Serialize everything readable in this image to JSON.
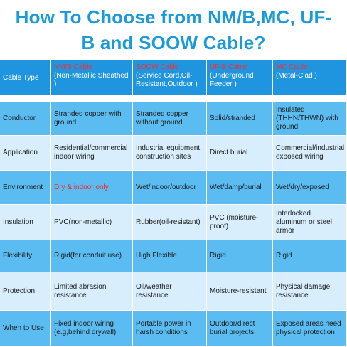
{
  "title": "How To Choose from NM/B,MC, UF-B and SOOW Cable?",
  "table": {
    "header": [
      {
        "name": "Cable Type"
      },
      {
        "name": "NM/B Cable",
        "desc": "(Non-Metallic Sheathed )"
      },
      {
        "name": "SOOW Cable",
        "desc": "(Service Cord,Oil-Resistant,Outdoor )"
      },
      {
        "name": "UF-B Cable",
        "desc": "(Underground Feeder )"
      },
      {
        "name": "MC Cable",
        "desc": "(Metal-Clad )"
      }
    ],
    "rows": [
      [
        "Conductor",
        "Stranded copper with ground",
        "Stranded copper without ground",
        "Solid/stranded",
        "Insulated (THHN/THWN) with ground"
      ],
      [
        "Application",
        "Residential/commercial indoor wiring",
        "Industrial equipment, construction sites",
        "Direct burial",
        "Commercial/industrial exposed wiring"
      ],
      [
        "Environment",
        "Dry & indoor only",
        "Wet/indoor/outdoor",
        "Wet/damp/burial",
        "Wet/dry/exposed"
      ],
      [
        "Insulation",
        "PVC(non-metallic)",
        "Rubber(oil-resistant)",
        "PVC (moisture-proof)",
        "Interlocked aluminum or steel armor"
      ],
      [
        "Flexibility",
        "Rigid(for conduit use)",
        "High Flexible",
        "Rigid",
        "Rigid"
      ],
      [
        "Protection",
        "Limited abrasion resistance",
        "Oil/weather resistance",
        "Moisture-resistant",
        "Physical damage resistance"
      ],
      [
        "When to Use",
        "Fixed indoor wiring (e.g,behind drywall)",
        "Portable power in harsh conditions",
        "Outdoor/direct burial projects",
        "Exposed areas need physical protection"
      ]
    ]
  }
}
